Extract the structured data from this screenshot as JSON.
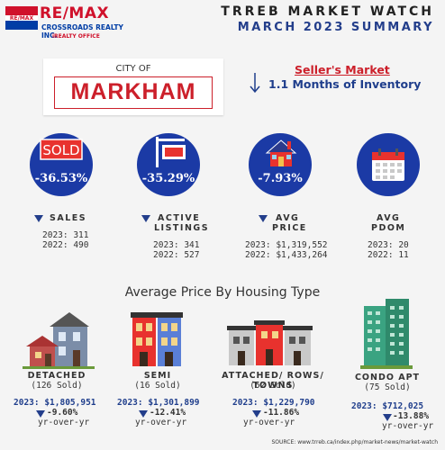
{
  "header": {
    "brand": "RE/MAX",
    "brand_sub1": "CROSSROADS REALTY INC.",
    "brand_sub2": "iREALTY OFFICE",
    "title1": "TRREB MARKET WATCH",
    "title2": "MARCH 2023 SUMMARY"
  },
  "city": {
    "prefix": "CITY OF",
    "name": "MARKHAM"
  },
  "market": {
    "type": "Seller's Market",
    "inventory": "1.1 Months of Inventory"
  },
  "stats": [
    {
      "label1": "SALES",
      "label2": "",
      "change": "-36.53%",
      "y2023": "2023: 311",
      "y2022": "2022: 490",
      "icon": "sold-sign-icon"
    },
    {
      "label1": "ACTIVE",
      "label2": "LISTINGS",
      "change": "-35.29%",
      "y2023": "2023: 341",
      "y2022": "2022: 527",
      "icon": "for-sale-sign-icon"
    },
    {
      "label1": "AVG",
      "label2": "PRICE",
      "change": "-7.93%",
      "y2023": "2023: $1,319,552",
      "y2022": "2022: $1,433,264",
      "icon": "house-icon"
    },
    {
      "label1": "AVG",
      "label2": "PDOM",
      "change": "",
      "y2023": "2023: 20",
      "y2022": "2022: 11",
      "icon": "calendar-icon"
    }
  ],
  "section_title": "Average Price By Housing Type",
  "types": [
    {
      "name": "DETACHED",
      "sold": "(126 Sold)",
      "price": "2023: $1,805,951",
      "change": "-9.60%",
      "yoy": "yr-over-yr"
    },
    {
      "name": "SEMI",
      "sold": "(16 Sold)",
      "price": "2023: $1,301,899",
      "change": "-12.41%",
      "yoy": "yr-over-yr"
    },
    {
      "name": "ATTACHED/ ROWS/ TOWNS",
      "sold": "(52 Sold)",
      "price": "2023: $1,229,790",
      "change": "-11.86%",
      "yoy": "yr-over-yr"
    },
    {
      "name": "CONDO APT",
      "sold": "(75 Sold)",
      "price": "2023: $712,025",
      "change": "-13.88%",
      "yoy": "yr-over-yr"
    }
  ],
  "source": "SOURCE:  www.trreb.ca/index.php/market-news/market-watch",
  "colors": {
    "red": "#cc1f2a",
    "blue": "#1b3aa5",
    "navy": "#1f3e8c"
  }
}
